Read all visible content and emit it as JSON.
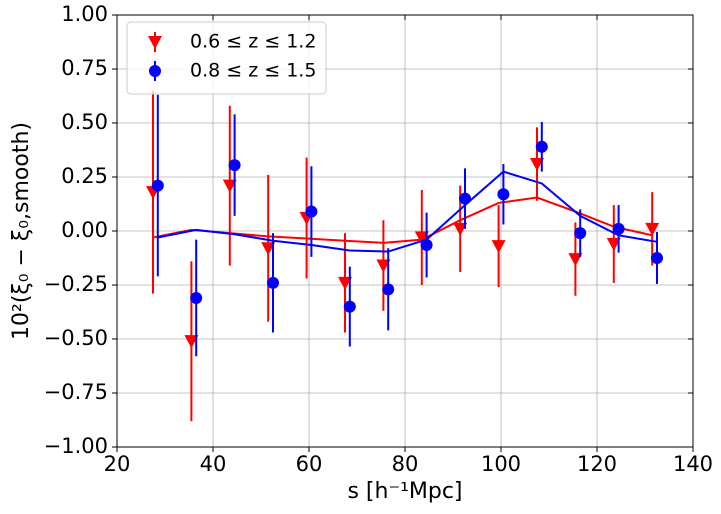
{
  "chart_data": {
    "type": "errorbar",
    "xlabel": "s [h⁻¹Mpc]",
    "ylabel": "10²(ξ₀ − ξ₀,smooth)",
    "xlim": [
      20,
      140
    ],
    "xticks": [
      20,
      40,
      60,
      80,
      100,
      120,
      140
    ],
    "ylim": [
      -1,
      1
    ],
    "yticks": [
      {
        "value": -1,
        "label": "−1.00"
      },
      {
        "value": -0.75,
        "label": "−0.75"
      },
      {
        "value": -0.5,
        "label": "−0.50"
      },
      {
        "value": -0.25,
        "label": "−0.25"
      },
      {
        "value": 0,
        "label": "0.00"
      },
      {
        "value": 0.25,
        "label": "0.25"
      },
      {
        "value": 0.5,
        "label": "0.50"
      },
      {
        "value": 0.75,
        "label": "0.75"
      },
      {
        "value": 1,
        "label": "1.00"
      }
    ],
    "grid": true,
    "legend": "upper left",
    "series": [
      {
        "name": "0.6 ≤ z ≤ 1.2",
        "color": "#ff0000",
        "marker": "triangle",
        "x": [
          27.5,
          35.5,
          43.5,
          51.5,
          59.5,
          67.5,
          75.5,
          83.5,
          91.5,
          99.5,
          107.5,
          115.5,
          123.5,
          131.5
        ],
        "values": [
          0.18,
          -0.51,
          0.21,
          -0.08,
          0.06,
          -0.24,
          -0.16,
          -0.03,
          0.01,
          -0.07,
          0.31,
          -0.13,
          -0.06,
          0.01
        ],
        "errors": [
          0.47,
          0.37,
          0.37,
          0.34,
          0.28,
          0.23,
          0.21,
          0.22,
          0.2,
          0.19,
          0.17,
          0.17,
          0.18,
          0.17
        ],
        "model_values": [
          -0.03,
          0.005,
          -0.01,
          -0.025,
          -0.035,
          -0.045,
          -0.055,
          -0.04,
          0.05,
          0.13,
          0.155,
          0.09,
          0.02,
          -0.02
        ]
      },
      {
        "name": "0.8 ≤ z ≤ 1.5",
        "color": "#0000ff",
        "marker": "circle",
        "x": [
          28.5,
          36.5,
          44.5,
          52.5,
          60.5,
          68.5,
          76.5,
          84.5,
          92.5,
          100.5,
          108.5,
          116.5,
          124.5,
          132.5
        ],
        "values": [
          0.21,
          -0.31,
          0.305,
          -0.24,
          0.09,
          -0.35,
          -0.27,
          -0.065,
          0.15,
          0.17,
          0.39,
          -0.01,
          0.01,
          -0.125
        ],
        "errors": [
          0.42,
          0.27,
          0.235,
          0.23,
          0.21,
          0.185,
          0.19,
          0.15,
          0.14,
          0.14,
          0.115,
          0.11,
          0.11,
          0.12
        ],
        "model_values": [
          -0.03,
          0.005,
          -0.015,
          -0.045,
          -0.065,
          -0.09,
          -0.095,
          -0.04,
          0.12,
          0.275,
          0.22,
          0.07,
          -0.02,
          -0.05
        ]
      }
    ]
  }
}
